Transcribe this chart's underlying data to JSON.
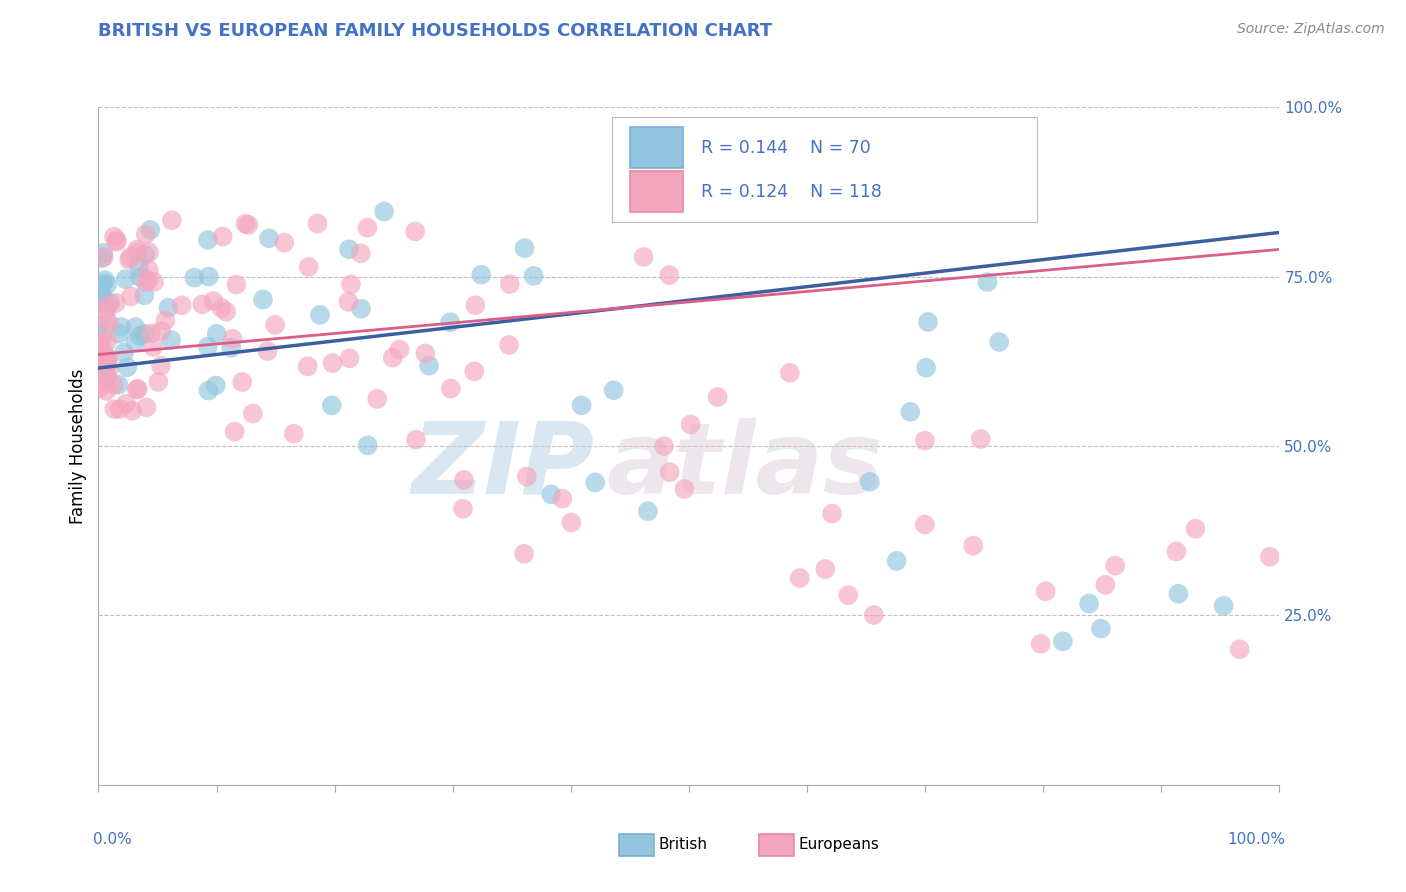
{
  "title": "BRITISH VS EUROPEAN FAMILY HOUSEHOLDS CORRELATION CHART",
  "source_text": "Source: ZipAtlas.com",
  "ylabel": "Family Households",
  "watermark": "ZIPatlas",
  "legend_r1": "0.144",
  "legend_n1": "70",
  "legend_r2": "0.124",
  "legend_n2": "118",
  "british_color": "#92c5de",
  "european_color": "#f4a6be",
  "trend_british_color": "#3d5fa0",
  "trend_european_color": "#d95f8a",
  "right_ytick_color": "#4472c4",
  "title_color": "#4472c4",
  "background_color": "#ffffff",
  "xlim": [
    0.0,
    1.0
  ],
  "ylim": [
    0.0,
    1.0
  ],
  "trend_british_start_y": 0.615,
  "trend_british_end_y": 0.815,
  "trend_european_start_y": 0.635,
  "trend_european_end_y": 0.79
}
